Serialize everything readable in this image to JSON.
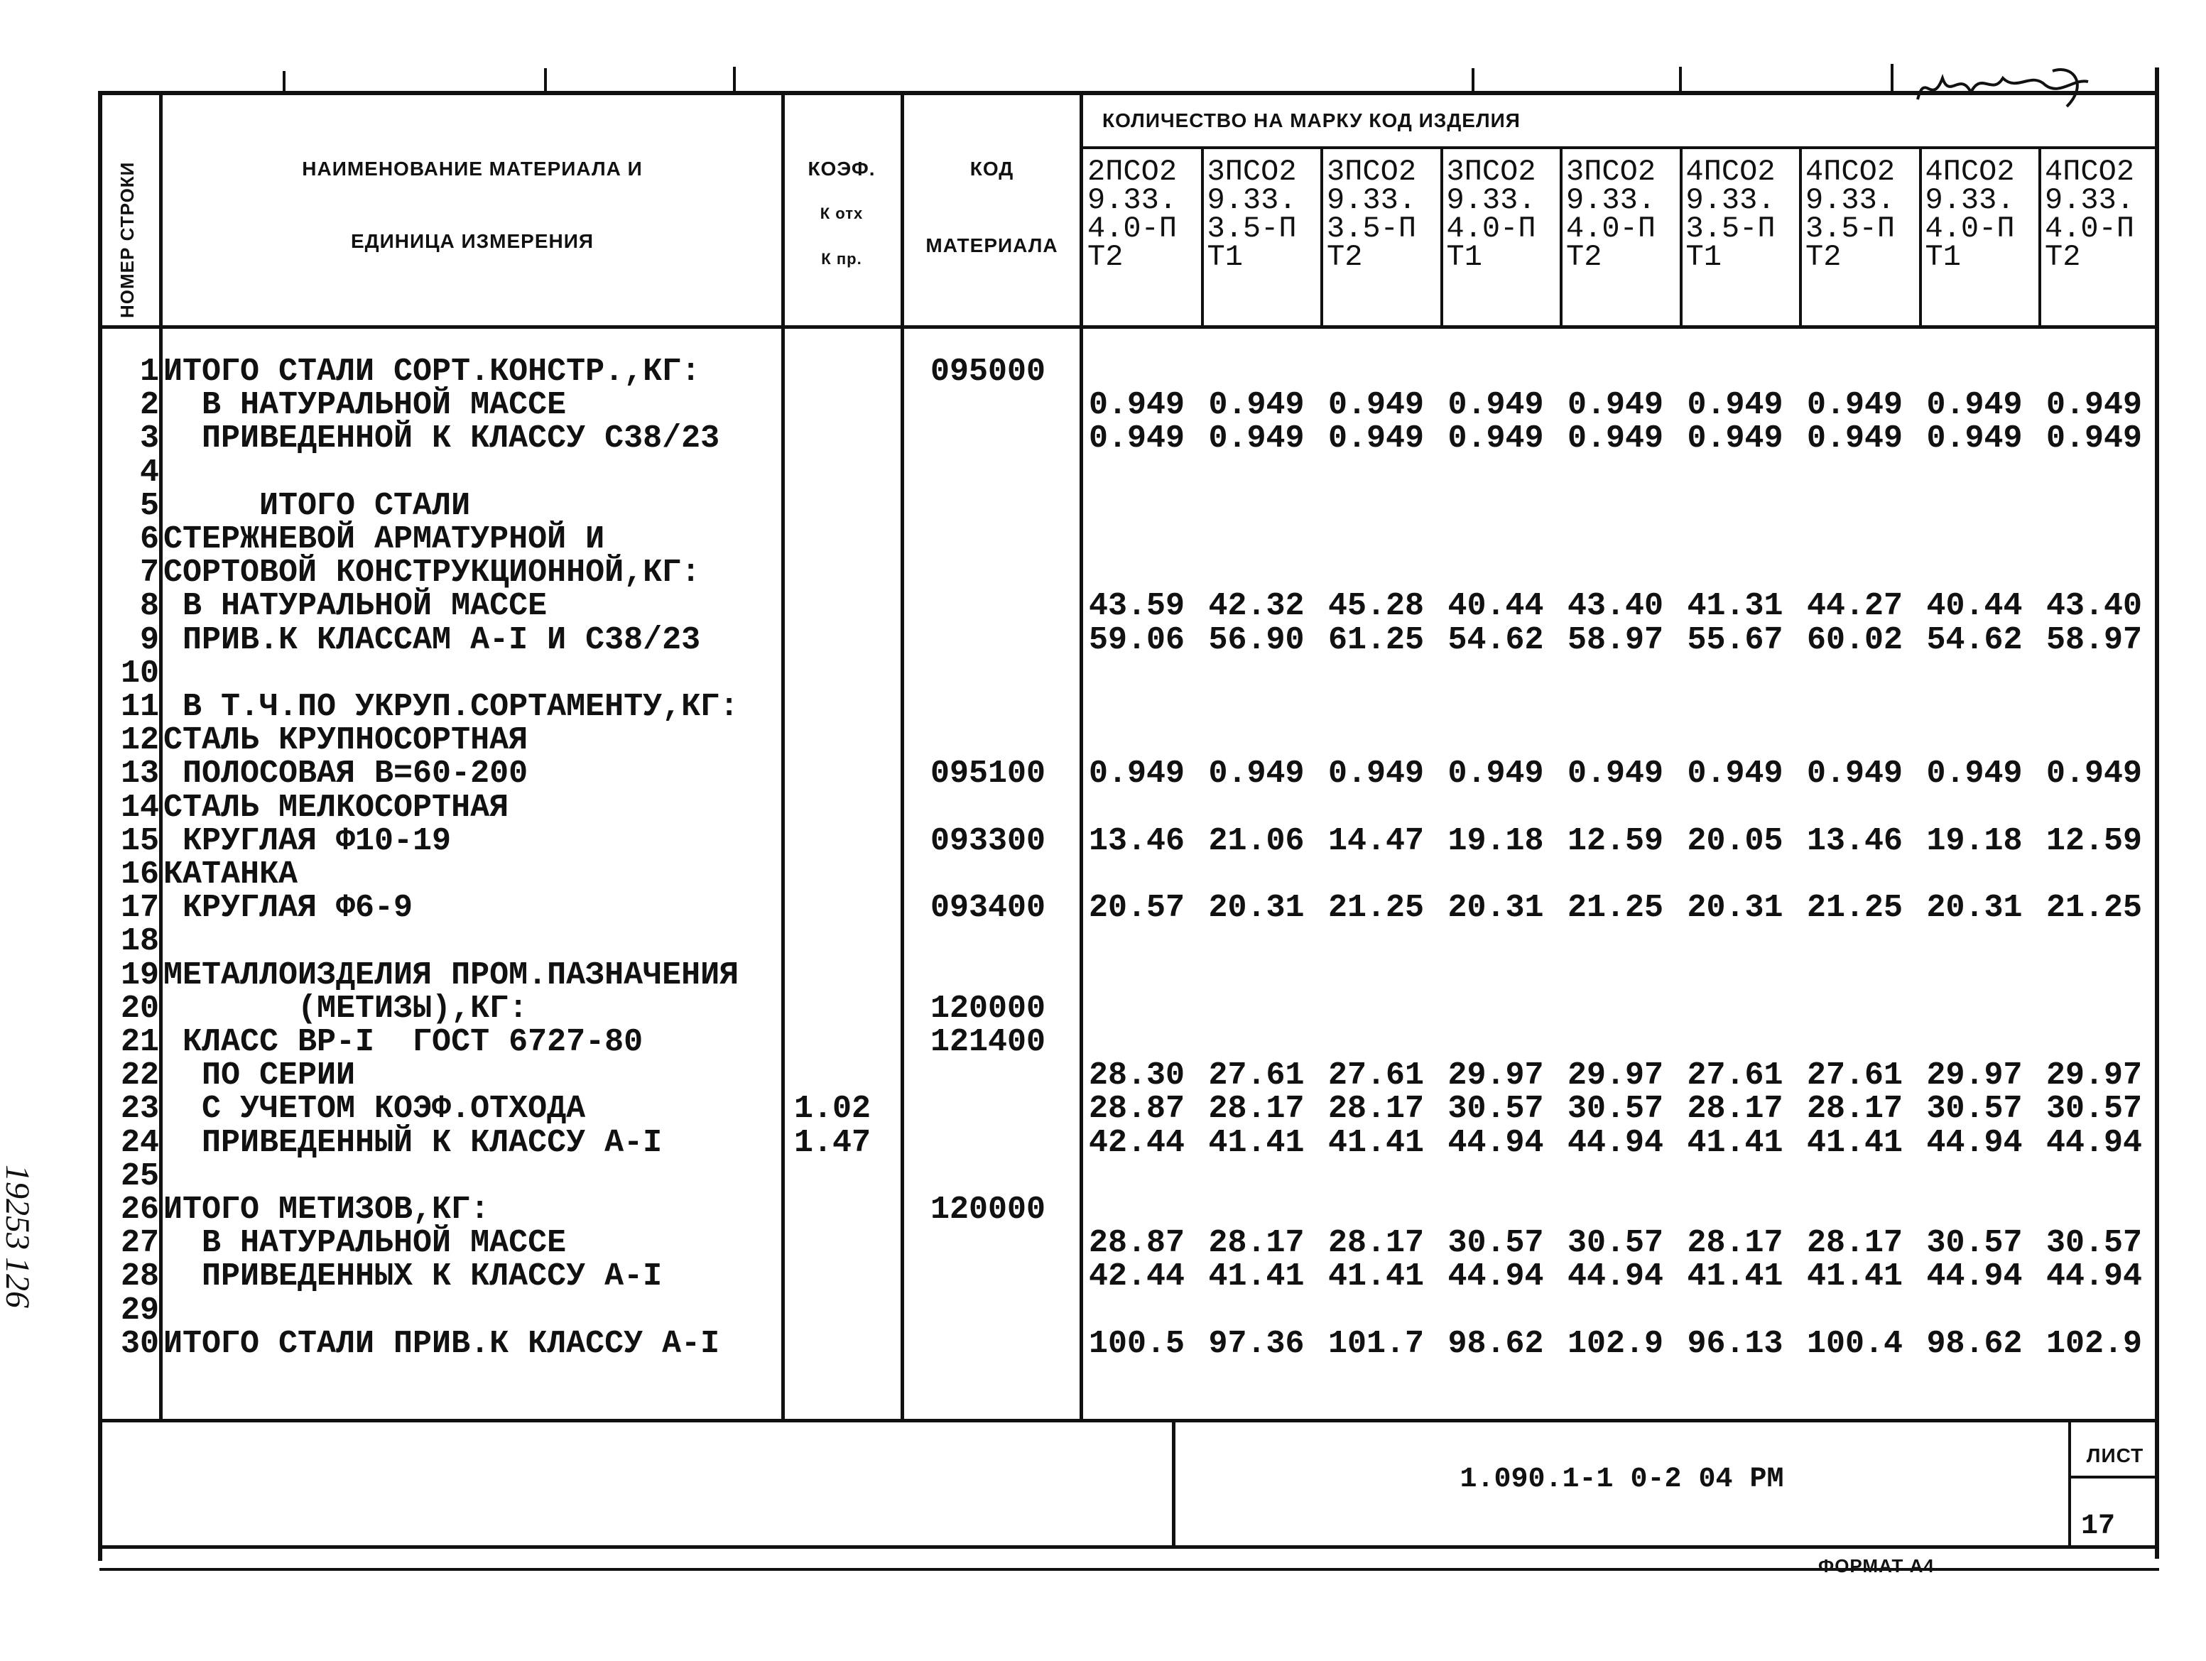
{
  "header": {
    "row_number": "НОМЕР СТРОКИ",
    "material_name_line1": "НАИМЕНОВАНИЕ МАТЕРИАЛА И",
    "material_name_line2": "ЕДИНИЦА ИЗМЕРЕНИЯ",
    "koef_line1": "КОЭФ.",
    "koef_line2": "К отх",
    "koef_line3": "К пр.",
    "code_line1": "КОД",
    "code_line2": "МАТЕРИАЛА",
    "quantity_title": "КОЛИЧЕСТВО НА МАРКУ КОД ИЗДЕЛИЯ",
    "products": [
      [
        "2ПСО2",
        "9.33.",
        "4.0-П",
        "Т2"
      ],
      [
        "3ПСО2",
        "9.33.",
        "3.5-П",
        "Т1"
      ],
      [
        "3ПСО2",
        "9.33.",
        "3.5-П",
        "Т2"
      ],
      [
        "3ПСО2",
        "9.33.",
        "4.0-П",
        "Т1"
      ],
      [
        "3ПСО2",
        "9.33.",
        "4.0-П",
        "Т2"
      ],
      [
        "4ПСО2",
        "9.33.",
        "3.5-П",
        "Т1"
      ],
      [
        "4ПСО2",
        "9.33.",
        "3.5-П",
        "Т2"
      ],
      [
        "4ПСО2",
        "9.33.",
        "4.0-П",
        "Т1"
      ],
      [
        "4ПСО2",
        "9.33.",
        "4.0-П",
        "Т2"
      ]
    ]
  },
  "rows": [
    {
      "n": "1",
      "name": "ИТОГО СТАЛИ СОРТ.КОНСТР.,КГ:",
      "koef": "",
      "code": "095000",
      "values": []
    },
    {
      "n": "2",
      "name": "  В НАТУРАЛЬНОЙ МАССЕ",
      "koef": "",
      "code": "",
      "values": [
        "0.949",
        "0.949",
        "0.949",
        "0.949",
        "0.949",
        "0.949",
        "0.949",
        "0.949",
        "0.949"
      ]
    },
    {
      "n": "3",
      "name": "  ПРИВЕДЕННОЙ К КЛАССУ С38/23",
      "koef": "",
      "code": "",
      "values": [
        "0.949",
        "0.949",
        "0.949",
        "0.949",
        "0.949",
        "0.949",
        "0.949",
        "0.949",
        "0.949"
      ]
    },
    {
      "n": "4",
      "name": "",
      "koef": "",
      "code": "",
      "values": []
    },
    {
      "n": "5",
      "name": "     ИТОГО СТАЛИ",
      "koef": "",
      "code": "",
      "values": []
    },
    {
      "n": "6",
      "name": "СТЕРЖНЕВОЙ АРМАТУРНОЙ И",
      "koef": "",
      "code": "",
      "values": []
    },
    {
      "n": "7",
      "name": "СОРТОВОЙ КОНСТРУКЦИОННОЙ,КГ:",
      "koef": "",
      "code": "",
      "values": []
    },
    {
      "n": "8",
      "name": " В НАТУРАЛЬНОЙ МАССЕ",
      "koef": "",
      "code": "",
      "values": [
        "43.59",
        "42.32",
        "45.28",
        "40.44",
        "43.40",
        "41.31",
        "44.27",
        "40.44",
        "43.40"
      ]
    },
    {
      "n": "9",
      "name": " ПРИВ.К КЛАССАМ А-I И С38/23",
      "koef": "",
      "code": "",
      "values": [
        "59.06",
        "56.90",
        "61.25",
        "54.62",
        "58.97",
        "55.67",
        "60.02",
        "54.62",
        "58.97"
      ]
    },
    {
      "n": "10",
      "name": "",
      "koef": "",
      "code": "",
      "values": []
    },
    {
      "n": "11",
      "name": " В Т.Ч.ПО УКРУП.СОРТАМЕНТУ,КГ:",
      "koef": "",
      "code": "",
      "values": []
    },
    {
      "n": "12",
      "name": "СТАЛЬ КРУПНОСОРТНАЯ",
      "koef": "",
      "code": "",
      "values": []
    },
    {
      "n": "13",
      "name": " ПОЛОСОВАЯ В=60-200",
      "koef": "",
      "code": "095100",
      "values": [
        "0.949",
        "0.949",
        "0.949",
        "0.949",
        "0.949",
        "0.949",
        "0.949",
        "0.949",
        "0.949"
      ]
    },
    {
      "n": "14",
      "name": "СТАЛЬ МЕЛКОСОРТНАЯ",
      "koef": "",
      "code": "",
      "values": []
    },
    {
      "n": "15",
      "name": " КРУГЛАЯ Ф10-19",
      "koef": "",
      "code": "093300",
      "values": [
        "13.46",
        "21.06",
        "14.47",
        "19.18",
        "12.59",
        "20.05",
        "13.46",
        "19.18",
        "12.59"
      ]
    },
    {
      "n": "16",
      "name": "КАТАНКА",
      "koef": "",
      "code": "",
      "values": []
    },
    {
      "n": "17",
      "name": " КРУГЛАЯ Ф6-9",
      "koef": "",
      "code": "093400",
      "values": [
        "20.57",
        "20.31",
        "21.25",
        "20.31",
        "21.25",
        "20.31",
        "21.25",
        "20.31",
        "21.25"
      ]
    },
    {
      "n": "18",
      "name": "",
      "koef": "",
      "code": "",
      "values": []
    },
    {
      "n": "19",
      "name": "МЕТАЛЛОИЗДЕЛИЯ ПРОМ.ПАЗНАЧЕНИЯ",
      "koef": "",
      "code": "",
      "values": []
    },
    {
      "n": "20",
      "name": "       (МЕТИЗЫ),КГ:",
      "koef": "",
      "code": "120000",
      "values": []
    },
    {
      "n": "21",
      "name": " КЛАСС ВР-I  ГОСТ 6727-80",
      "koef": "",
      "code": "121400",
      "values": []
    },
    {
      "n": "22",
      "name": "  ПО СЕРИИ",
      "koef": "",
      "code": "",
      "values": [
        "28.30",
        "27.61",
        "27.61",
        "29.97",
        "29.97",
        "27.61",
        "27.61",
        "29.97",
        "29.97"
      ]
    },
    {
      "n": "23",
      "name": "  С УЧЕТОМ КОЭФ.ОТХОДА",
      "koef": "1.02",
      "code": "",
      "values": [
        "28.87",
        "28.17",
        "28.17",
        "30.57",
        "30.57",
        "28.17",
        "28.17",
        "30.57",
        "30.57"
      ]
    },
    {
      "n": "24",
      "name": "  ПРИВЕДЕННЫЙ К КЛАССУ А-I",
      "koef": "1.47",
      "code": "",
      "values": [
        "42.44",
        "41.41",
        "41.41",
        "44.94",
        "44.94",
        "41.41",
        "41.41",
        "44.94",
        "44.94"
      ]
    },
    {
      "n": "25",
      "name": "",
      "koef": "",
      "code": "",
      "values": []
    },
    {
      "n": "26",
      "name": "ИТОГО МЕТИЗОВ,КГ:",
      "koef": "",
      "code": "120000",
      "values": []
    },
    {
      "n": "27",
      "name": "  В НАТУРАЛЬНОЙ МАССЕ",
      "koef": "",
      "code": "",
      "values": [
        "28.87",
        "28.17",
        "28.17",
        "30.57",
        "30.57",
        "28.17",
        "28.17",
        "30.57",
        "30.57"
      ]
    },
    {
      "n": "28",
      "name": "  ПРИВЕДЕННЫХ К КЛАССУ А-I",
      "koef": "",
      "code": "",
      "values": [
        "42.44",
        "41.41",
        "41.41",
        "44.94",
        "44.94",
        "41.41",
        "41.41",
        "44.94",
        "44.94"
      ]
    },
    {
      "n": "29",
      "name": "",
      "koef": "",
      "code": "",
      "values": []
    },
    {
      "n": "30",
      "name": "ИТОГО СТАЛИ ПРИВ.К КЛАССУ А-I",
      "koef": "",
      "code": "",
      "values": [
        "100.5",
        "97.36",
        "101.7",
        "98.62",
        "102.9",
        "96.13",
        "100.4",
        "98.62",
        "102.9"
      ]
    }
  ],
  "title_block": {
    "document_code": "1.090.1-1 0-2 04 РМ",
    "sheet_label": "ЛИСТ",
    "sheet_number": "17",
    "format": "ФОРМАТ А4"
  },
  "margin": {
    "inventory_number": "19253",
    "page_mark": "126"
  }
}
